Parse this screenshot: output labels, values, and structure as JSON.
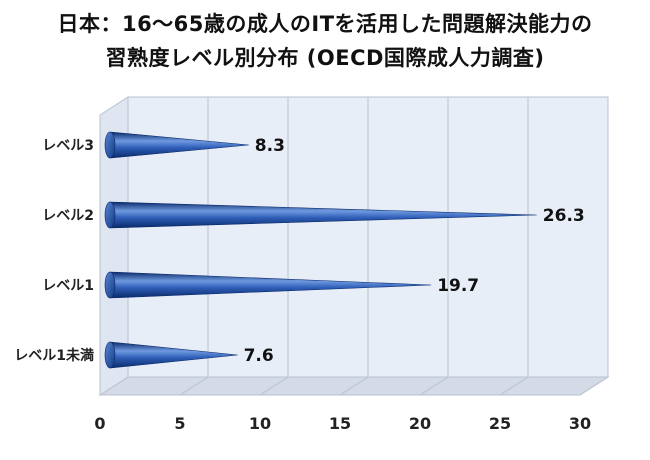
{
  "chart_data": {
    "type": "bar",
    "orientation": "horizontal",
    "style": "3d-cone",
    "title_line1": "日本：16～65歳の成人のITを活用した問題解決能力の",
    "title_line2": "習熟度レベル別分布 (OECD国際成人力調査)",
    "categories": [
      "レベル3",
      "レベル2",
      "レベル1",
      "レベル1未満"
    ],
    "values": [
      8.3,
      26.3,
      19.7,
      7.6
    ],
    "value_labels": [
      "8.3",
      "26.3",
      "19.7",
      "7.6"
    ],
    "xlim": [
      0,
      30
    ],
    "xticks": [
      0,
      5,
      10,
      15,
      20,
      25,
      30
    ],
    "xtick_labels": [
      "0",
      "5",
      "10",
      "15",
      "20",
      "25",
      "30"
    ],
    "grid": true,
    "colors": {
      "bar": "#1f4fa8",
      "bar_light": "#6f9ae0",
      "bar_dark": "#0a2a6a",
      "wall": "#e8eef8",
      "floor": "#d4dbe6",
      "grid": "#b9c2d0"
    }
  }
}
